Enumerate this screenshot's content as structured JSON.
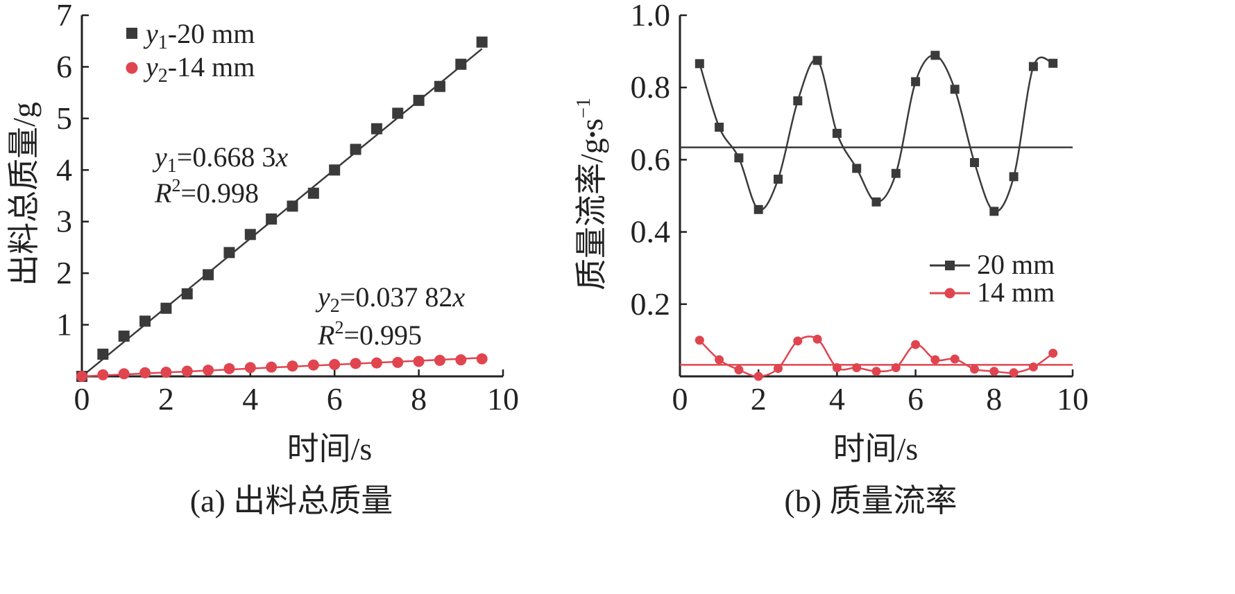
{
  "colors": {
    "black_series": "#3a3a3a",
    "red_series": "#e0454f",
    "axis": "#222222"
  },
  "chart_data": [
    {
      "type": "scatter",
      "panel_caption": "(a) 出料总质量",
      "xlabel": "时间/s",
      "ylabel": "出料总质量/g",
      "xlim": [
        0,
        10
      ],
      "ylim": [
        0,
        7
      ],
      "x_ticks": [
        "0",
        "2",
        "4",
        "6",
        "8",
        "10"
      ],
      "y_ticks": [
        "1",
        "2",
        "3",
        "4",
        "5",
        "6",
        "7"
      ],
      "legend_placement": "top-left",
      "series": [
        {
          "name": "y1-20 mm",
          "legend_base": "y",
          "legend_sub": "1",
          "legend_suffix": "-20 mm",
          "marker": "square",
          "color": "#3a3a3a",
          "x": [
            0,
            0.5,
            1,
            1.5,
            2,
            2.5,
            3,
            3.5,
            4,
            4.5,
            5,
            5.5,
            6,
            6.5,
            7,
            7.5,
            8,
            8.5,
            9,
            9.5
          ],
          "y": [
            0,
            0.43,
            0.78,
            1.07,
            1.32,
            1.6,
            1.97,
            2.4,
            2.75,
            3.05,
            3.3,
            3.55,
            4.0,
            4.4,
            4.8,
            5.1,
            5.35,
            5.62,
            6.05,
            6.48
          ],
          "fit": {
            "slope": 0.6683,
            "x_range": [
              0,
              9.5
            ]
          }
        },
        {
          "name": "y2-14 mm",
          "legend_base": "y",
          "legend_sub": "2",
          "legend_suffix": "-14 mm",
          "marker": "circle",
          "color": "#e0454f",
          "x": [
            0,
            0.5,
            1,
            1.5,
            2,
            2.5,
            3,
            3.5,
            4,
            4.5,
            5,
            5.5,
            6,
            6.5,
            7,
            7.5,
            8,
            8.5,
            9,
            9.5
          ],
          "y": [
            0,
            0.03,
            0.05,
            0.07,
            0.08,
            0.1,
            0.12,
            0.15,
            0.17,
            0.18,
            0.2,
            0.22,
            0.23,
            0.25,
            0.26,
            0.27,
            0.29,
            0.31,
            0.32,
            0.34
          ],
          "fit": {
            "slope": 0.03782,
            "x_range": [
              0,
              9.5
            ]
          }
        }
      ],
      "annotations": [
        {
          "eq_var": "y",
          "eq_sub": "1",
          "eq_rest": "=0.668 3",
          "eq_x": "x",
          "r2_text": "=0.998"
        },
        {
          "eq_var": "y",
          "eq_sub": "2",
          "eq_rest": "=0.037 82",
          "eq_x": "x",
          "r2_text": "=0.995"
        }
      ],
      "r2_var": "R",
      "r2_sup": "2"
    },
    {
      "type": "line",
      "panel_caption": "(b) 质量流率",
      "xlabel": "时间/s",
      "ylabel_main": "质量流率/g",
      "ylabel_dot": "•",
      "ylabel_unit": "s",
      "ylabel_sup": "−1",
      "xlim": [
        0,
        10
      ],
      "ylim": [
        0,
        1.0
      ],
      "x_ticks": [
        "0",
        "2",
        "4",
        "6",
        "8",
        "10"
      ],
      "y_ticks": [
        "0.2",
        "0.4",
        "0.6",
        "0.8",
        "1.0"
      ],
      "legend_placement": "lower-right",
      "series": [
        {
          "name": "20 mm",
          "marker": "square",
          "color": "#3a3a3a",
          "x": [
            0.5,
            1,
            1.5,
            2,
            2.5,
            3,
            3.5,
            4,
            4.5,
            5,
            5.5,
            6,
            6.5,
            7,
            7.5,
            8,
            8.5,
            9,
            9.5
          ],
          "y": [
            0.866,
            0.69,
            0.605,
            0.462,
            0.546,
            0.763,
            0.875,
            0.673,
            0.576,
            0.483,
            0.562,
            0.816,
            0.889,
            0.795,
            0.592,
            0.457,
            0.553,
            0.858,
            0.867
          ],
          "mean_line": 0.634
        },
        {
          "name": "14 mm",
          "marker": "circle",
          "color": "#e0454f",
          "x": [
            0.5,
            1,
            1.5,
            2,
            2.5,
            3,
            3.5,
            4,
            4.5,
            5,
            5.5,
            6,
            6.5,
            7,
            7.5,
            8,
            8.5,
            9,
            9.5
          ],
          "y": [
            0.1,
            0.046,
            0.018,
            0.0,
            0.022,
            0.098,
            0.103,
            0.024,
            0.024,
            0.014,
            0.024,
            0.088,
            0.046,
            0.048,
            0.02,
            0.014,
            0.01,
            0.026,
            0.064
          ],
          "mean_line": 0.032
        }
      ]
    }
  ]
}
